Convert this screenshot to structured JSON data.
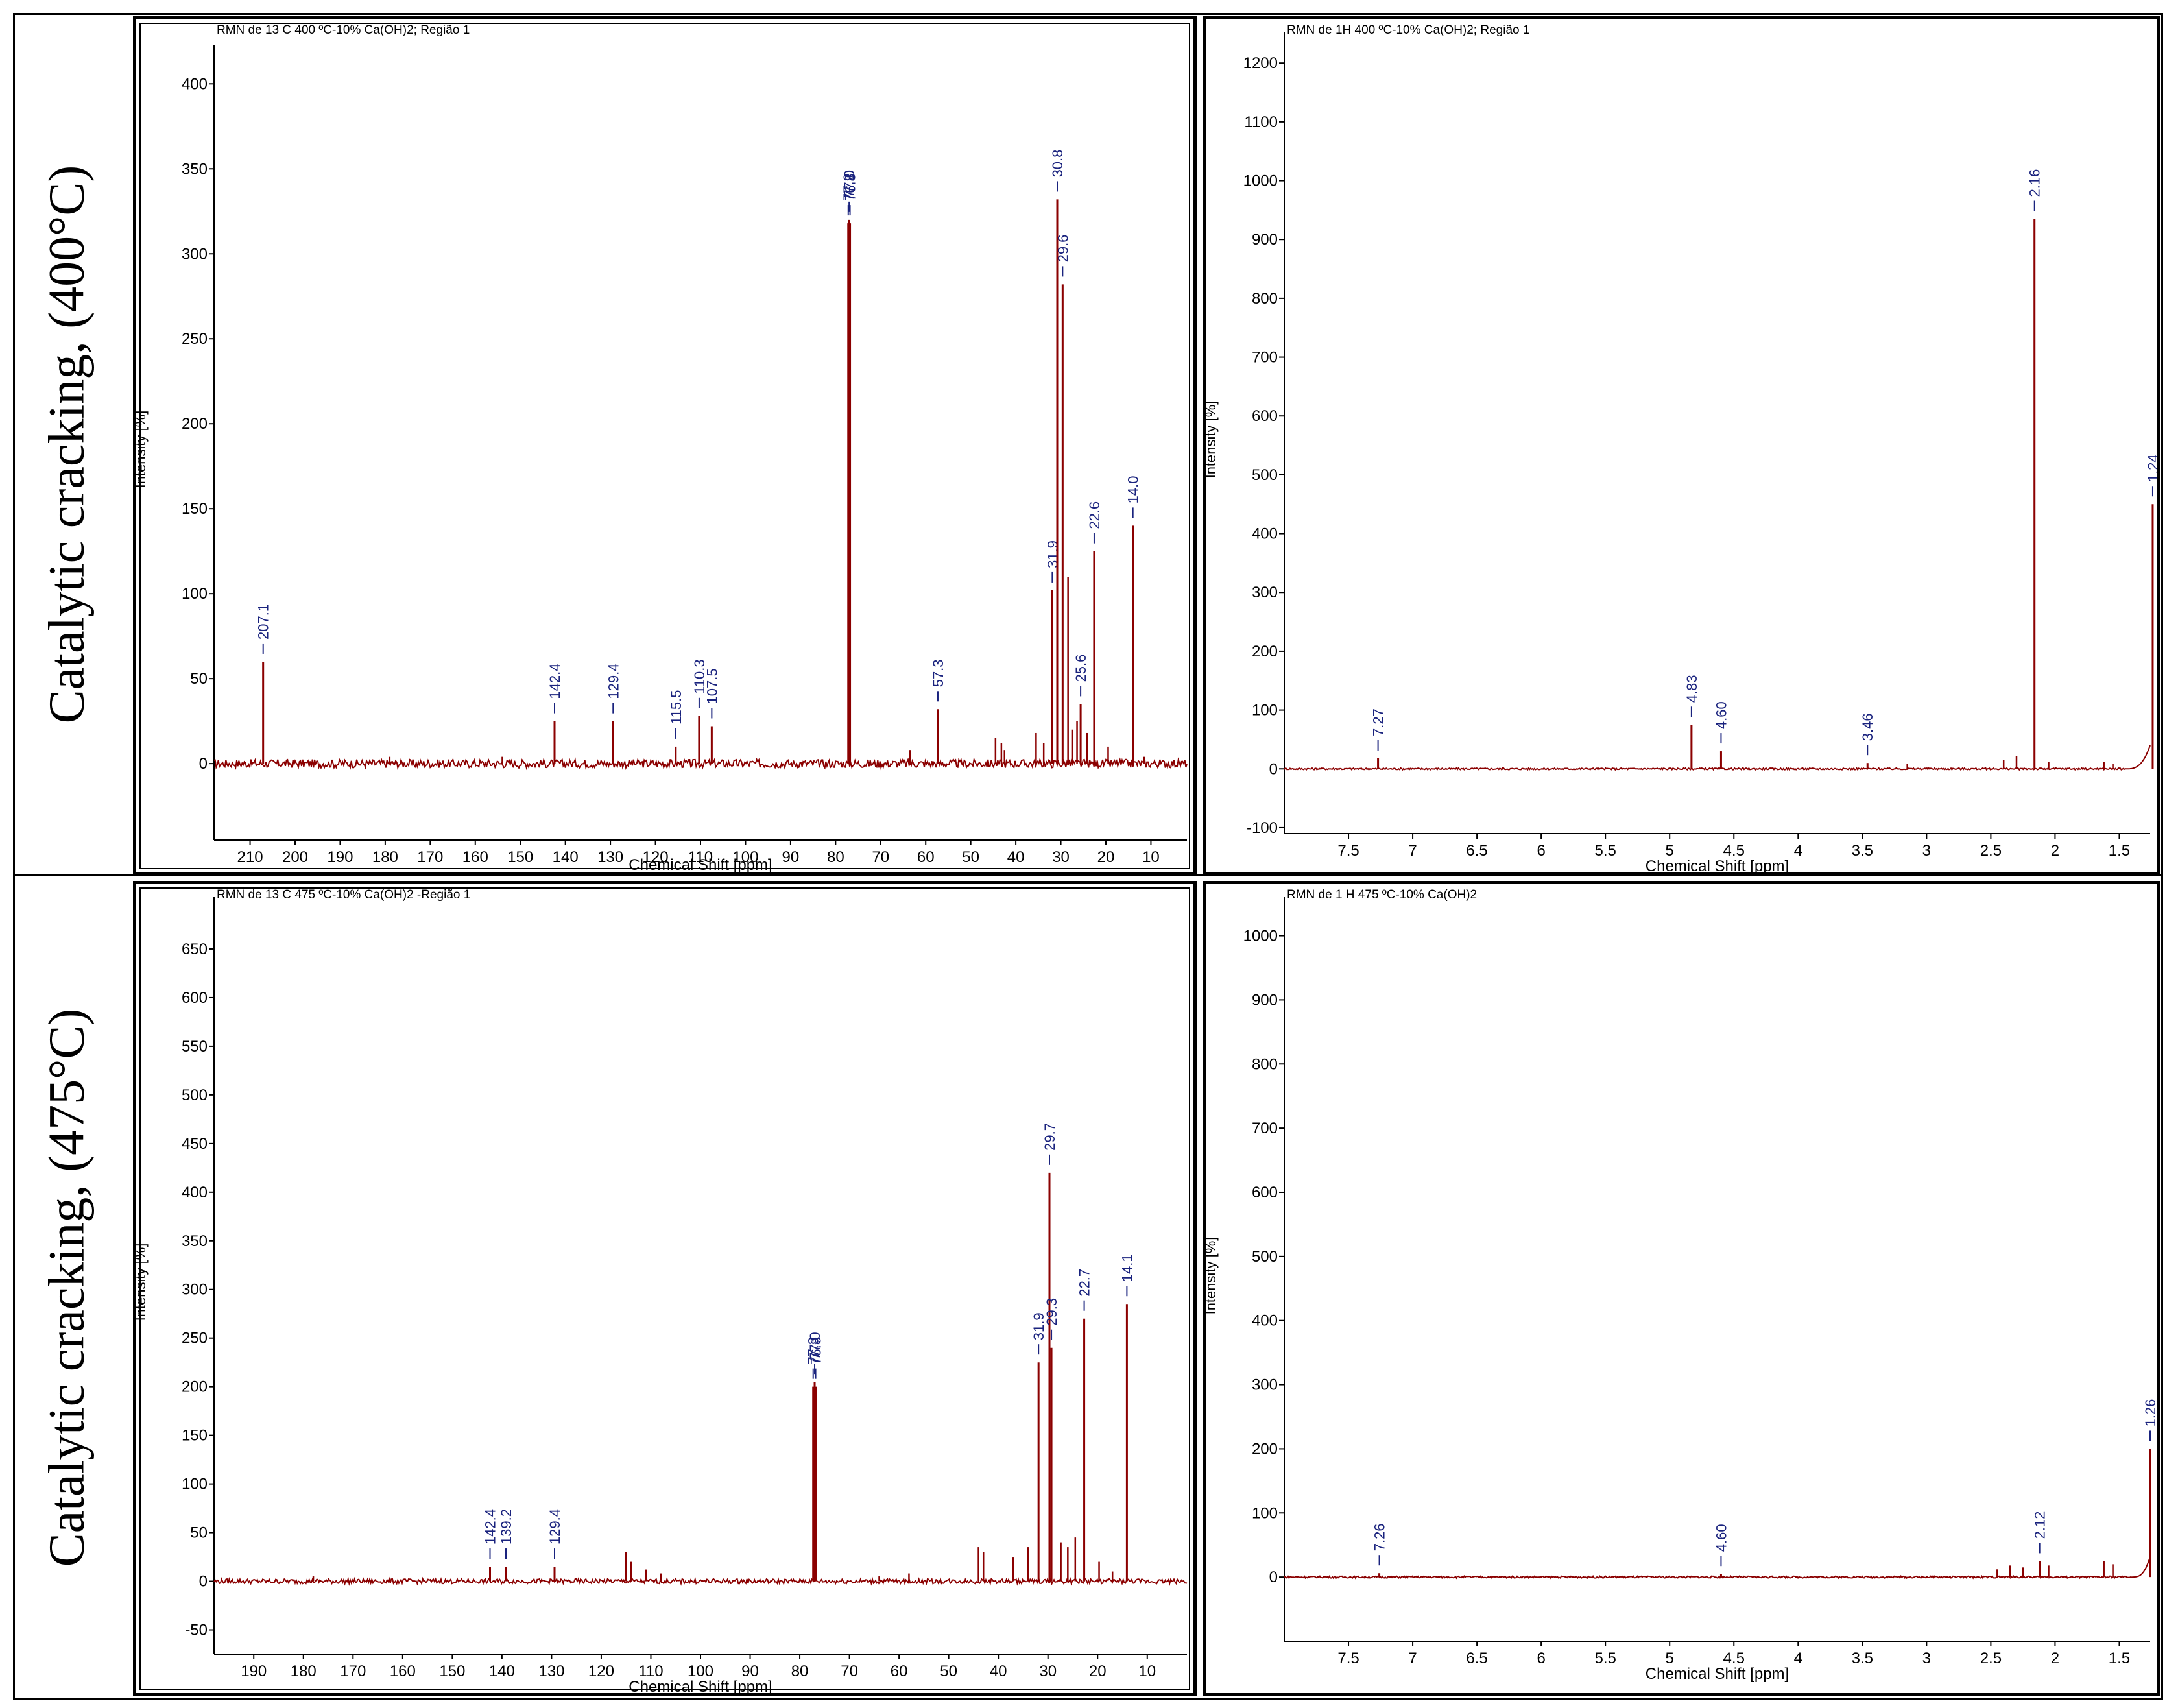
{
  "row_labels": [
    "Catalytic cracking, (400°C)",
    "Catalytic cracking, (475°C)"
  ],
  "colors": {
    "trace": "#8b0000",
    "peak_label": "#1a237e",
    "axis": "#000000"
  },
  "chart_data": [
    {
      "type": "line",
      "title": "RMN de 13 C 400 ºC-10% Ca(OH)2; Região 1",
      "xlabel": "Chemical Shift [ppm]",
      "ylabel": "Intensity [%]",
      "xlim": [
        218,
        2
      ],
      "ylim": [
        -45,
        415
      ],
      "xticks": [
        210,
        200,
        190,
        180,
        170,
        160,
        150,
        140,
        130,
        120,
        110,
        100,
        90,
        80,
        70,
        60,
        50,
        40,
        30,
        20,
        10
      ],
      "yticks": [
        0,
        50,
        100,
        150,
        200,
        250,
        300,
        350,
        400
      ],
      "peaks": [
        {
          "x": 207.1,
          "y": 60,
          "label": "207.1"
        },
        {
          "x": 142.4,
          "y": 25,
          "label": "142.4"
        },
        {
          "x": 129.4,
          "y": 25,
          "label": "129.4"
        },
        {
          "x": 115.5,
          "y": 10,
          "label": "115.5"
        },
        {
          "x": 110.3,
          "y": 28,
          "label": "110.3"
        },
        {
          "x": 107.5,
          "y": 22,
          "label": "107.5"
        },
        {
          "x": 77.2,
          "y": 318,
          "label": "77.2"
        },
        {
          "x": 77.0,
          "y": 320,
          "label": "77.0"
        },
        {
          "x": 76.8,
          "y": 318,
          "label": "76.8"
        },
        {
          "x": 57.3,
          "y": 32,
          "label": "57.3"
        },
        {
          "x": 31.9,
          "y": 102,
          "label": "31.9"
        },
        {
          "x": 30.8,
          "y": 332,
          "label": "30.8"
        },
        {
          "x": 29.6,
          "y": 282,
          "label": "29.6"
        },
        {
          "x": 25.6,
          "y": 35,
          "label": "25.6"
        },
        {
          "x": 22.6,
          "y": 125,
          "label": "22.6"
        },
        {
          "x": 14.0,
          "y": 140,
          "label": "14.0"
        }
      ],
      "minor_peaks": [
        [
          63.5,
          8
        ],
        [
          44.5,
          15
        ],
        [
          43.2,
          12
        ],
        [
          42.5,
          8
        ],
        [
          35.5,
          18
        ],
        [
          33.8,
          12
        ],
        [
          28.4,
          110
        ],
        [
          27.5,
          20
        ],
        [
          26.4,
          25
        ],
        [
          24.2,
          18
        ],
        [
          19.5,
          10
        ],
        [
          11.5,
          4
        ],
        [
          179,
          4
        ],
        [
          154,
          4
        ]
      ]
    },
    {
      "type": "line",
      "title": "RMN de 1H 400 ºC-10% Ca(OH)2; Região 1",
      "xlabel": "Chemical Shift [ppm]",
      "ylabel": "Intensity [%]",
      "xlim": [
        8.0,
        1.26
      ],
      "ylim": [
        -110,
        1230
      ],
      "xticks": [
        7.5,
        7.0,
        6.5,
        6.0,
        5.5,
        5.0,
        4.5,
        4.0,
        3.5,
        3.0,
        2.5,
        2.0,
        1.5
      ],
      "yticks": [
        -100,
        0,
        100,
        200,
        300,
        400,
        500,
        600,
        700,
        800,
        900,
        1000,
        1100,
        1200
      ],
      "peaks": [
        {
          "x": 7.27,
          "y": 18,
          "label": "7.27"
        },
        {
          "x": 4.83,
          "y": 75,
          "label": "4.83"
        },
        {
          "x": 4.6,
          "y": 30,
          "label": "4.60"
        },
        {
          "x": 3.46,
          "y": 10,
          "label": "3.46"
        },
        {
          "x": 2.16,
          "y": 935,
          "label": "2.16"
        },
        {
          "x": 1.24,
          "y": 450,
          "label": "1.24"
        }
      ],
      "minor_peaks": [
        [
          6.3,
          3
        ],
        [
          3.15,
          8
        ],
        [
          2.4,
          15
        ],
        [
          2.3,
          22
        ],
        [
          2.05,
          12
        ],
        [
          1.62,
          12
        ],
        [
          1.55,
          8
        ]
      ]
    },
    {
      "type": "line",
      "title": "RMN de 13 C 475 ºC-10% Ca(OH)2 -Região 1",
      "xlabel": "Chemical Shift [ppm]",
      "ylabel": "Intensity [%]",
      "xlim": [
        198,
        2
      ],
      "ylim": [
        -75,
        690
      ],
      "xticks": [
        190,
        180,
        170,
        160,
        150,
        140,
        130,
        120,
        110,
        100,
        90,
        80,
        70,
        60,
        50,
        40,
        30,
        20,
        10
      ],
      "yticks": [
        -50,
        0,
        50,
        100,
        150,
        200,
        250,
        300,
        350,
        400,
        450,
        500,
        550,
        600,
        650
      ],
      "peaks": [
        {
          "x": 142.4,
          "y": 15,
          "label": "142.4"
        },
        {
          "x": 139.2,
          "y": 15,
          "label": "139.2"
        },
        {
          "x": 129.4,
          "y": 15,
          "label": "129.4"
        },
        {
          "x": 77.3,
          "y": 200,
          "label": "77.3"
        },
        {
          "x": 77.0,
          "y": 205,
          "label": "77.0"
        },
        {
          "x": 76.8,
          "y": 200,
          "label": "76.8"
        },
        {
          "x": 31.9,
          "y": 225,
          "label": "31.9"
        },
        {
          "x": 29.7,
          "y": 420,
          "label": "29.7"
        },
        {
          "x": 29.3,
          "y": 240,
          "label": "29.3"
        },
        {
          "x": 22.7,
          "y": 270,
          "label": "22.7"
        },
        {
          "x": 14.1,
          "y": 285,
          "label": "14.1"
        }
      ],
      "minor_peaks": [
        [
          178,
          5
        ],
        [
          115,
          30
        ],
        [
          114,
          20
        ],
        [
          111,
          12
        ],
        [
          108,
          8
        ],
        [
          64,
          5
        ],
        [
          58,
          8
        ],
        [
          44,
          35
        ],
        [
          43,
          30
        ],
        [
          37,
          25
        ],
        [
          34,
          35
        ],
        [
          27.4,
          40
        ],
        [
          26,
          35
        ],
        [
          24.5,
          45
        ],
        [
          19.7,
          20
        ],
        [
          17,
          10
        ]
      ]
    },
    {
      "type": "line",
      "title": "RMN de 1 H 475 ºC-10% Ca(OH)2",
      "xlabel": "Chemical Shift [ppm]",
      "ylabel": "Intensity [%]",
      "xlim": [
        8.0,
        1.26
      ],
      "ylim": [
        -100,
        1040
      ],
      "xticks": [
        7.5,
        7.0,
        6.5,
        6.0,
        5.5,
        5.0,
        4.5,
        4.0,
        3.5,
        3.0,
        2.5,
        2.0,
        1.5
      ],
      "yticks": [
        0,
        100,
        200,
        300,
        400,
        500,
        600,
        700,
        800,
        900,
        1000
      ],
      "peaks": [
        {
          "x": 7.26,
          "y": 6,
          "label": "7.26"
        },
        {
          "x": 4.6,
          "y": 5,
          "label": "4.60"
        },
        {
          "x": 2.12,
          "y": 25,
          "label": "2.12"
        },
        {
          "x": 1.26,
          "y": 200,
          "label": "1.26"
        }
      ],
      "minor_peaks": [
        [
          2.45,
          12
        ],
        [
          2.35,
          18
        ],
        [
          2.25,
          15
        ],
        [
          2.05,
          18
        ],
        [
          1.62,
          25
        ],
        [
          1.55,
          20
        ]
      ]
    }
  ]
}
